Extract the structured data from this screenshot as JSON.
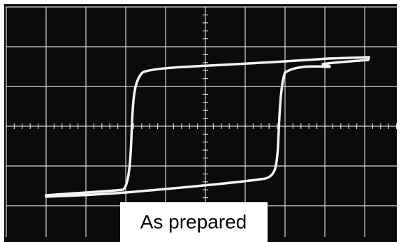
{
  "label": "As prepared"
}
